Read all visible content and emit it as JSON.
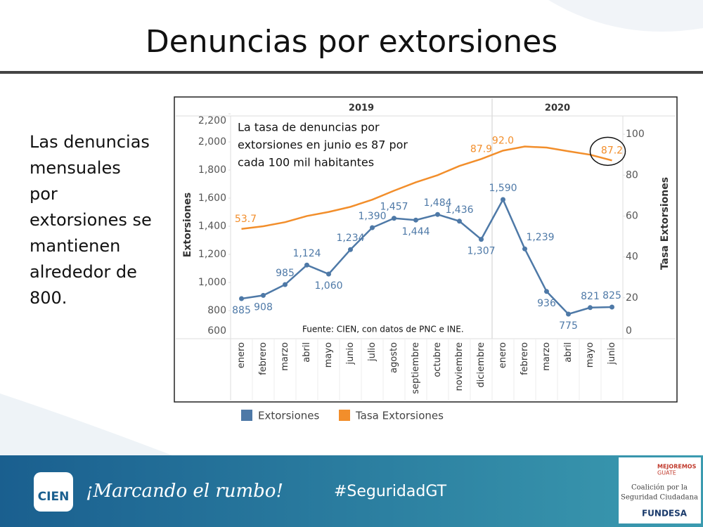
{
  "title": "Denuncias por extorsiones",
  "side_text": [
    "Las denuncias",
    "mensuales",
    "por",
    "extorsiones se",
    "mantienen",
    "alrededor de",
    "800."
  ],
  "footer": {
    "logo": "CIEN",
    "slogan": "¡Marcando el rumbo!",
    "hashtag": "#SeguridadGT",
    "partner_logo": {
      "top": [
        "MEJOREMOS",
        "GUATE"
      ],
      "middle": [
        "Coalición por la",
        "Seguridad Ciudadana"
      ],
      "bottom": "FUNDESA"
    }
  },
  "chart_data": {
    "type": "line",
    "groups": [
      {
        "name": "2019",
        "categories": [
          "enero",
          "febrero",
          "marzo",
          "abril",
          "mayo",
          "junio",
          "julio",
          "agosto",
          "septiembre",
          "octubre",
          "noviembre",
          "diciembre"
        ]
      },
      {
        "name": "2020",
        "categories": [
          "enero",
          "febrero",
          "marzo",
          "abril",
          "mayo",
          "junio"
        ]
      }
    ],
    "series": [
      {
        "name": "Extorsiones",
        "color": "#4e79a7",
        "values": [
          885,
          908,
          985,
          1124,
          1060,
          1234,
          1390,
          1457,
          1444,
          1484,
          1436,
          1307,
          1590,
          1239,
          936,
          775,
          821,
          825
        ],
        "value_labels": [
          "885",
          "908",
          "985",
          "1,124",
          "1,060",
          "1,234",
          "1,390",
          "1,457",
          "1,444",
          "1,484",
          "1,436",
          "1,307",
          "1,590",
          "1,239",
          "936",
          "775",
          "821",
          "825"
        ]
      },
      {
        "name": "Tasa Extorsiones",
        "color": "#f28e2b",
        "axis": "y2",
        "values": [
          53.7,
          55,
          57,
          60,
          62,
          64.5,
          68,
          72.4,
          76.5,
          80,
          84.5,
          87.9,
          92.0,
          94,
          93.5,
          91.7,
          90,
          87.2
        ],
        "value_labels": [
          "53.7",
          null,
          null,
          null,
          null,
          null,
          null,
          null,
          null,
          null,
          null,
          "87.9",
          "92.0",
          null,
          null,
          null,
          null,
          "87.2"
        ]
      }
    ],
    "ylabel": "Extorsiones",
    "y2label": "Tasa Extorsiones",
    "ylim": [
      600,
      2200
    ],
    "yticks": [
      600,
      800,
      {
        "value": 1000,
        "label": "1,000"
      },
      {
        "value": 1200,
        "label": "1,200"
      },
      {
        "value": 1400,
        "label": "1,400"
      },
      {
        "value": 1600,
        "label": "1,600"
      },
      {
        "value": 1800,
        "label": "1,800"
      },
      {
        "value": 2000,
        "label": "2,000"
      },
      {
        "value": 2200,
        "label": "2,200"
      }
    ],
    "y2lim": [
      0,
      110
    ],
    "y2ticks": [
      0,
      20,
      40,
      60,
      80,
      100
    ],
    "annotation": [
      "La tasa de denuncias por",
      "extorsiones en junio es 87 por",
      "cada 100 mil habitantes"
    ],
    "source": "Fuente: CIEN, con datos de PNC e INE.",
    "grid": false
  }
}
